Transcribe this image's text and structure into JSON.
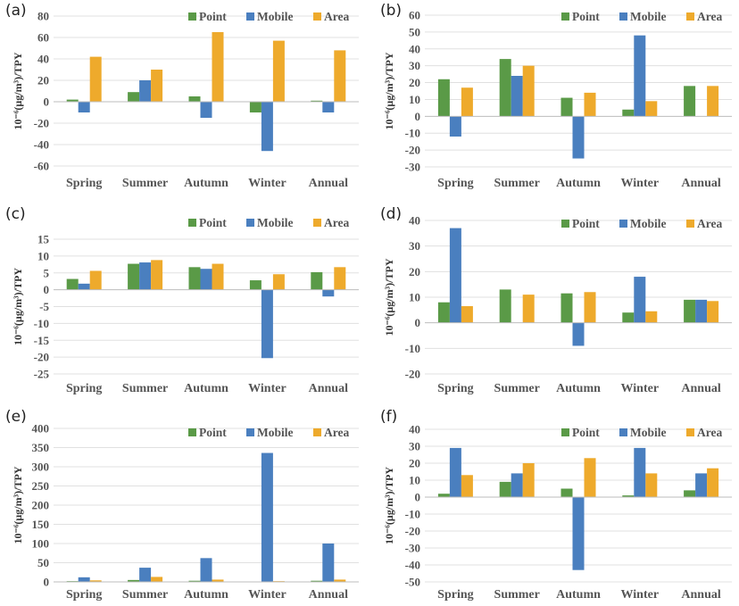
{
  "colors": {
    "Point": "#5a9a47",
    "Mobile": "#4a7fbf",
    "Area": "#eeaa2c"
  },
  "chart_data": [
    {
      "panel": "(a)",
      "type": "bar",
      "ylabel": "10⁻⁶(μg/m³)/TPY",
      "categories": [
        "Spring",
        "Summer",
        "Autumn",
        "Winter",
        "Annual"
      ],
      "ylim": [
        -60,
        80
      ],
      "yticks": [
        80,
        60,
        40,
        20,
        0,
        -20,
        -40,
        -60
      ],
      "series": [
        {
          "name": "Point",
          "values": [
            2,
            9,
            5,
            -10,
            1
          ]
        },
        {
          "name": "Mobile",
          "values": [
            -10,
            20,
            -15,
            -46,
            -10
          ]
        },
        {
          "name": "Area",
          "values": [
            42,
            30,
            65,
            57,
            48
          ]
        }
      ]
    },
    {
      "panel": "(b)",
      "type": "bar",
      "ylabel": "10⁻⁶(μg/m³)/TPY",
      "categories": [
        "Spring",
        "Summer",
        "Autumn",
        "Winter",
        "Annual"
      ],
      "ylim": [
        -30,
        60
      ],
      "yticks": [
        60,
        50,
        40,
        30,
        20,
        10,
        0,
        -10,
        -20,
        -30
      ],
      "series": [
        {
          "name": "Point",
          "values": [
            22,
            34,
            11,
            4,
            18
          ]
        },
        {
          "name": "Mobile",
          "values": [
            -12,
            24,
            -25,
            48,
            0
          ]
        },
        {
          "name": "Area",
          "values": [
            17,
            30,
            14,
            9,
            18
          ]
        }
      ]
    },
    {
      "panel": "(c)",
      "type": "bar",
      "ylabel": "10⁻⁶(μg/m³)/TPY",
      "categories": [
        "Spring",
        "Summer",
        "Autumn",
        "Winter",
        "Annual"
      ],
      "ylim": [
        -25,
        15
      ],
      "yticks": [
        15,
        10,
        5,
        0,
        -5,
        -10,
        -15,
        -20,
        -25
      ],
      "series": [
        {
          "name": "Point",
          "values": [
            3.2,
            7.7,
            6.7,
            2.8,
            5.2
          ]
        },
        {
          "name": "Mobile",
          "values": [
            1.8,
            8.1,
            6.2,
            -20.3,
            -2
          ]
        },
        {
          "name": "Area",
          "values": [
            5.6,
            8.8,
            7.7,
            4.6,
            6.7
          ]
        }
      ]
    },
    {
      "panel": "(d)",
      "type": "bar",
      "ylabel": "10⁻⁶(μg/m³)/TPY",
      "categories": [
        "Spring",
        "Summer",
        "Autumn",
        "Winter",
        "Annual"
      ],
      "ylim": [
        -20,
        40
      ],
      "yticks": [
        40,
        30,
        20,
        10,
        0,
        -10,
        -20
      ],
      "series": [
        {
          "name": "Point",
          "values": [
            8,
            13,
            11.5,
            4,
            9
          ]
        },
        {
          "name": "Mobile",
          "values": [
            37,
            0,
            -9,
            18,
            9
          ]
        },
        {
          "name": "Area",
          "values": [
            6.5,
            11,
            12,
            4.5,
            8.5
          ]
        }
      ]
    },
    {
      "panel": "(e)",
      "type": "bar",
      "ylabel": "10⁻⁶(μg/m³)/TPY",
      "categories": [
        "Spring",
        "Summer",
        "Autumn",
        "Winter",
        "Annual"
      ],
      "ylim": [
        0,
        400
      ],
      "yticks": [
        400,
        350,
        300,
        250,
        200,
        150,
        100,
        50,
        0
      ],
      "series": [
        {
          "name": "Point",
          "values": [
            2,
            5,
            3,
            1,
            3
          ]
        },
        {
          "name": "Mobile",
          "values": [
            12,
            37,
            62,
            336,
            100
          ]
        },
        {
          "name": "Area",
          "values": [
            4,
            13,
            6,
            2,
            6
          ]
        }
      ]
    },
    {
      "panel": "(f)",
      "type": "bar",
      "ylabel": "10⁻⁶(μg/m³)/TPY",
      "categories": [
        "Spring",
        "Summer",
        "Autumn",
        "Winter",
        "Annual"
      ],
      "ylim": [
        -50,
        40
      ],
      "yticks": [
        40,
        30,
        20,
        10,
        0,
        -10,
        -20,
        -30,
        -40,
        -50
      ],
      "series": [
        {
          "name": "Point",
          "values": [
            2,
            9,
            5,
            1,
            4
          ]
        },
        {
          "name": "Mobile",
          "values": [
            29,
            14,
            -43,
            29,
            14
          ]
        },
        {
          "name": "Area",
          "values": [
            13,
            20,
            23,
            14,
            17
          ]
        }
      ]
    }
  ]
}
